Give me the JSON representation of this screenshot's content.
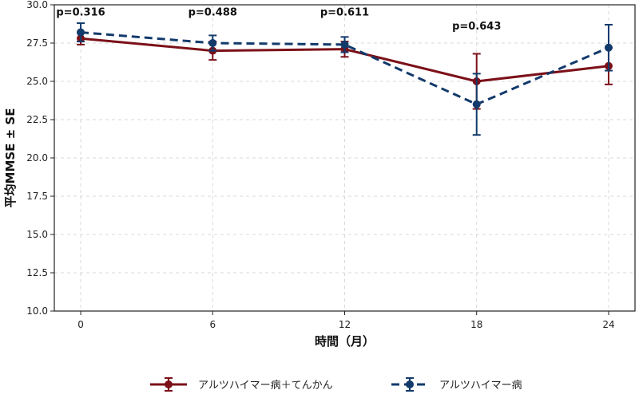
{
  "chart_data": {
    "type": "line",
    "xlabel": "時間（月）",
    "ylabel": "平均MMSE ± SE",
    "x": [
      0,
      6,
      12,
      18,
      24
    ],
    "xticks": [
      "0",
      "6",
      "12",
      "18",
      "24"
    ],
    "ylim": [
      10.0,
      30.0
    ],
    "yticks": [
      "10.0",
      "12.5",
      "15.0",
      "17.5",
      "20.0",
      "22.5",
      "25.0",
      "27.5",
      "30.0"
    ],
    "grid": true,
    "legend_position": "bottom",
    "series": [
      {
        "name": "アルツハイマー病＋てんかん",
        "color": "#7b1018",
        "style": "solid",
        "values": [
          27.8,
          27.0,
          27.1,
          25.0,
          26.0
        ],
        "se": [
          0.4,
          0.6,
          0.5,
          1.8,
          1.2
        ]
      },
      {
        "name": "アルツハイマー病",
        "color": "#123a6b",
        "style": "dashed",
        "values": [
          28.2,
          27.5,
          27.4,
          23.5,
          27.2
        ],
        "se": [
          0.6,
          0.5,
          0.5,
          2.0,
          1.5
        ]
      }
    ],
    "annotations": [
      {
        "text": "p=0.316",
        "x": 0,
        "y": 29.5
      },
      {
        "text": "p=0.488",
        "x": 6,
        "y": 29.5
      },
      {
        "text": "p=0.611",
        "x": 12,
        "y": 29.5
      },
      {
        "text": "p=0.643",
        "x": 18,
        "y": 28.6
      }
    ]
  }
}
